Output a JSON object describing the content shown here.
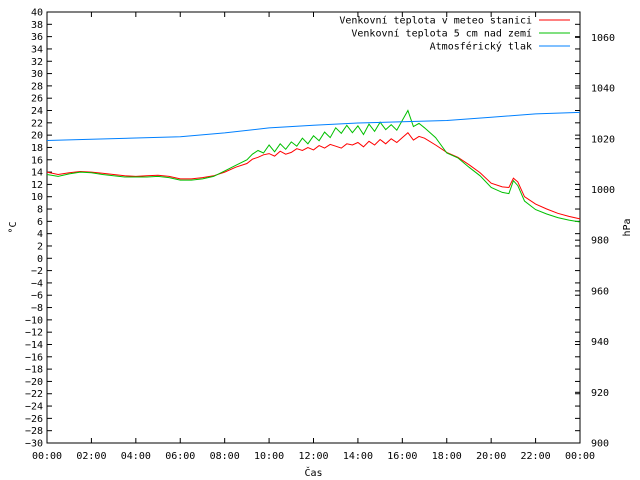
{
  "chart_data": {
    "type": "line",
    "xlabel": "Čas",
    "ylabel": "°C",
    "y2label": "hPa",
    "x_ticks": [
      "00:00",
      "02:00",
      "04:00",
      "06:00",
      "08:00",
      "10:00",
      "12:00",
      "14:00",
      "16:00",
      "18:00",
      "20:00",
      "22:00",
      "00:00"
    ],
    "x_range_hours": [
      0,
      24
    ],
    "ylim": [
      -30,
      40
    ],
    "y_ticks": [
      -30,
      -28,
      -26,
      -24,
      -22,
      -20,
      -18,
      -16,
      -14,
      -12,
      -10,
      -8,
      -6,
      -4,
      -2,
      0,
      2,
      4,
      6,
      8,
      10,
      12,
      14,
      16,
      18,
      20,
      22,
      24,
      26,
      28,
      30,
      32,
      34,
      36,
      38,
      40
    ],
    "y2lim": [
      900,
      1070
    ],
    "y2_ticks": [
      900,
      920,
      940,
      960,
      980,
      1000,
      1020,
      1040,
      1060
    ],
    "grid": false,
    "legend_position": "top-right",
    "series": [
      {
        "name": "Venkovní teplota v meteo stanici",
        "color": "#ff0000",
        "axis": "left",
        "x": [
          0,
          0.5,
          1,
          1.5,
          2,
          2.5,
          3,
          3.5,
          4,
          4.5,
          5,
          5.5,
          6,
          6.5,
          7,
          7.5,
          8,
          8.5,
          9,
          9.25,
          9.5,
          9.75,
          10,
          10.25,
          10.5,
          10.75,
          11,
          11.25,
          11.5,
          11.75,
          12,
          12.25,
          12.5,
          12.75,
          13,
          13.25,
          13.5,
          13.75,
          14,
          14.25,
          14.5,
          14.75,
          15,
          15.25,
          15.5,
          15.75,
          16,
          16.25,
          16.5,
          16.75,
          17,
          17.5,
          18,
          18.5,
          19,
          19.5,
          20,
          20.5,
          20.8,
          21,
          21.2,
          21.5,
          22,
          22.5,
          23,
          23.5,
          24
        ],
        "values": [
          14,
          13.6,
          13.9,
          14.1,
          14,
          13.8,
          13.6,
          13.4,
          13.3,
          13.4,
          13.5,
          13.3,
          12.9,
          12.9,
          13.1,
          13.4,
          14,
          14.8,
          15.4,
          16.1,
          16.4,
          16.8,
          17,
          16.6,
          17.4,
          16.9,
          17.2,
          17.8,
          17.5,
          18,
          17.6,
          18.3,
          17.9,
          18.5,
          18.2,
          17.9,
          18.6,
          18.4,
          18.8,
          18.1,
          19,
          18.4,
          19.3,
          18.6,
          19.4,
          18.8,
          19.6,
          20.4,
          19.2,
          19.8,
          19.5,
          18.4,
          17.2,
          16.4,
          15.2,
          13.9,
          12.2,
          11.6,
          11.5,
          13,
          12.4,
          10,
          8.8,
          8,
          7.3,
          6.8,
          6.4
        ]
      },
      {
        "name": "Venkovní teplota 5 cm nad zemí",
        "color": "#00c000",
        "axis": "left",
        "x": [
          0,
          0.5,
          1,
          1.5,
          2,
          2.5,
          3,
          3.5,
          4,
          4.5,
          5,
          5.5,
          6,
          6.5,
          7,
          7.5,
          8,
          8.5,
          9,
          9.25,
          9.5,
          9.75,
          10,
          10.25,
          10.5,
          10.75,
          11,
          11.25,
          11.5,
          11.75,
          12,
          12.25,
          12.5,
          12.75,
          13,
          13.25,
          13.5,
          13.75,
          14,
          14.25,
          14.5,
          14.75,
          15,
          15.25,
          15.5,
          15.75,
          16,
          16.25,
          16.5,
          16.75,
          17,
          17.5,
          18,
          18.5,
          19,
          19.5,
          20,
          20.5,
          20.8,
          21,
          21.2,
          21.5,
          22,
          22.5,
          23,
          23.5,
          24
        ],
        "values": [
          13.6,
          13.3,
          13.7,
          14,
          13.9,
          13.6,
          13.4,
          13.2,
          13.2,
          13.2,
          13.3,
          13.1,
          12.7,
          12.7,
          12.9,
          13.3,
          14.2,
          15.1,
          16,
          16.9,
          17.5,
          17.1,
          18.4,
          17.3,
          18.6,
          17.7,
          18.9,
          18.2,
          19.5,
          18.6,
          19.9,
          19.1,
          20.5,
          19.6,
          21.2,
          20.3,
          21.6,
          20.4,
          21.5,
          20.1,
          21.8,
          20.6,
          22.1,
          20.9,
          21.7,
          20.8,
          22.4,
          24,
          21.4,
          21.9,
          21.2,
          19.6,
          17.1,
          16.3,
          14.8,
          13.4,
          11.5,
          10.7,
          10.5,
          12.6,
          11.8,
          9.3,
          7.9,
          7.2,
          6.6,
          6.2,
          5.9
        ]
      },
      {
        "name": "Atmosférický tlak",
        "color": "#0080ff",
        "axis": "right",
        "x": [
          0,
          2,
          4,
          6,
          8,
          10,
          12,
          14,
          16,
          18,
          20,
          22,
          24
        ],
        "values": [
          1019.3,
          1019.8,
          1020.3,
          1020.8,
          1022.3,
          1024.3,
          1025.3,
          1026.2,
          1026.7,
          1027.2,
          1028.5,
          1029.8,
          1030.4
        ]
      }
    ]
  }
}
